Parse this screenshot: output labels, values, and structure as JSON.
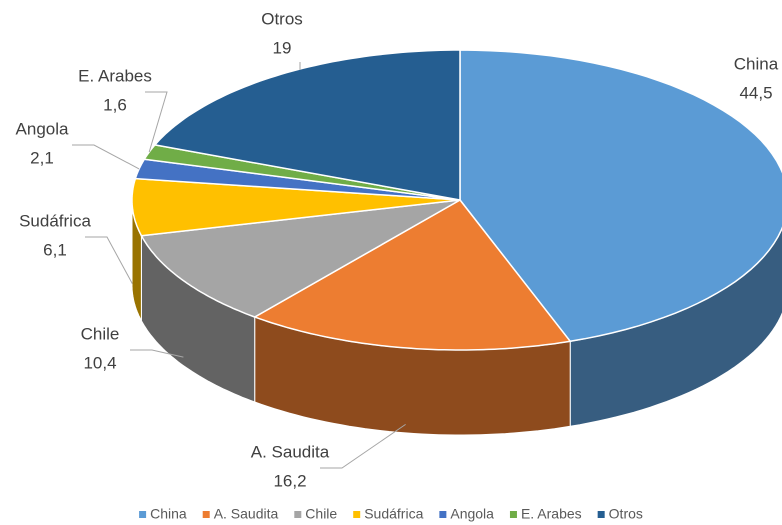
{
  "chart_data": {
    "type": "pie3d",
    "categories": [
      "China",
      "A. Saudita",
      "Chile",
      "Sudáfrica",
      "Angola",
      "E. Arabes",
      "Otros"
    ],
    "values": [
      44.5,
      16.2,
      10.4,
      6.1,
      2.1,
      1.6,
      19
    ],
    "value_labels": [
      "44,5",
      "16,2",
      "10,4",
      "6,1",
      "2,1",
      "1,6",
      "19"
    ],
    "colors": [
      "#5b9bd5",
      "#ed7d31",
      "#a5a5a5",
      "#ffc000",
      "#4472c4",
      "#70ad47",
      "#255e91"
    ],
    "legend": "bottom"
  }
}
